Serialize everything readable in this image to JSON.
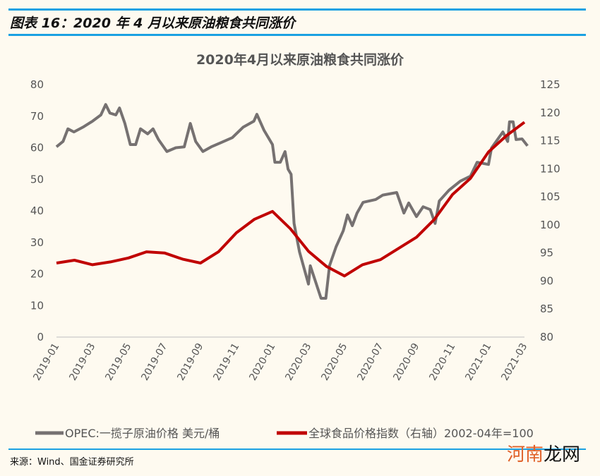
{
  "header": {
    "figure_title": "图表 16：2020 年 4 月以来原油粮食共同涨价"
  },
  "footer": {
    "source": "来源：Wind、国金证券研究所"
  },
  "watermark": {
    "part1": "河南",
    "part2": "龙网"
  },
  "colors": {
    "rule": "#1BA1E2",
    "oil": "#767171",
    "food": "#C00000",
    "background": "#FEFAF0"
  },
  "chart_data": {
    "type": "line",
    "title": "2020年4月以来原油粮食共同涨价",
    "x_ticks": [
      "2019-01",
      "2019-03",
      "2019-05",
      "2019-07",
      "2019-09",
      "2019-11",
      "2020-01",
      "2020-03",
      "2020-05",
      "2020-07",
      "2020-09",
      "2020-11",
      "2021-01",
      "2021-03"
    ],
    "y_left": {
      "range": [
        0,
        80
      ],
      "ticks": [
        "0",
        "10",
        "20",
        "30",
        "40",
        "50",
        "60",
        "70",
        "80"
      ]
    },
    "y_right": {
      "range": [
        80,
        125
      ],
      "ticks": [
        "80",
        "85",
        "90",
        "95",
        "100",
        "105",
        "110",
        "115",
        "120",
        "125"
      ]
    },
    "grid": false,
    "legend_position": "bottom",
    "series": [
      {
        "name": "OPEC:一揽子原油价格 美元/桶",
        "axis": "left",
        "color": "#767171",
        "points": [
          [
            "2019-01-01",
            60.3
          ],
          [
            "2019-01-12",
            62
          ],
          [
            "2019-01-20",
            66
          ],
          [
            "2019-01-30",
            65
          ],
          [
            "2019-02-15",
            66.5
          ],
          [
            "2019-03-01",
            68.4
          ],
          [
            "2019-03-15",
            70.4
          ],
          [
            "2019-03-23",
            73.7
          ],
          [
            "2019-03-30",
            71
          ],
          [
            "2019-04-10",
            70.4
          ],
          [
            "2019-04-16",
            72.6
          ],
          [
            "2019-04-25",
            67.7
          ],
          [
            "2019-05-04",
            61
          ],
          [
            "2019-05-13",
            61
          ],
          [
            "2019-05-21",
            66
          ],
          [
            "2019-06-03",
            64.4
          ],
          [
            "2019-06-12",
            66
          ],
          [
            "2019-06-21",
            62.6
          ],
          [
            "2019-07-05",
            58.8
          ],
          [
            "2019-07-20",
            60
          ],
          [
            "2019-08-04",
            60.3
          ],
          [
            "2019-08-14",
            67.7
          ],
          [
            "2019-08-23",
            62
          ],
          [
            "2019-09-05",
            58.8
          ],
          [
            "2019-09-19",
            60.3
          ],
          [
            "2019-10-06",
            61.7
          ],
          [
            "2019-10-24",
            63.2
          ],
          [
            "2019-11-12",
            66.5
          ],
          [
            "2019-11-30",
            68.4
          ],
          [
            "2019-12-05",
            70.6
          ],
          [
            "2019-12-17",
            65.5
          ],
          [
            "2020-01-01",
            61
          ],
          [
            "2020-01-05",
            55.4
          ],
          [
            "2020-01-14",
            55.4
          ],
          [
            "2020-01-22",
            58.8
          ],
          [
            "2020-01-27",
            53.2
          ],
          [
            "2020-02-02",
            51.6
          ],
          [
            "2020-02-07",
            36
          ],
          [
            "2020-02-16",
            27
          ],
          [
            "2020-03-01",
            16.8
          ],
          [
            "2020-03-04",
            22.6
          ],
          [
            "2020-03-22",
            12.3
          ],
          [
            "2020-03-30",
            12.3
          ],
          [
            "2020-04-06",
            22.6
          ],
          [
            "2020-04-17",
            28.6
          ],
          [
            "2020-04-29",
            33.7
          ],
          [
            "2020-05-06",
            38.7
          ],
          [
            "2020-05-14",
            35.3
          ],
          [
            "2020-05-22",
            39.3
          ],
          [
            "2020-06-02",
            42.7
          ],
          [
            "2020-06-23",
            43.6
          ],
          [
            "2020-07-05",
            45
          ],
          [
            "2020-07-28",
            45.8
          ],
          [
            "2020-08-10",
            39.3
          ],
          [
            "2020-08-18",
            42.5
          ],
          [
            "2020-09-01",
            38.2
          ],
          [
            "2020-09-12",
            41.3
          ],
          [
            "2020-09-24",
            40.4
          ],
          [
            "2020-10-02",
            36
          ],
          [
            "2020-10-09",
            43.1
          ],
          [
            "2020-10-25",
            46.5
          ],
          [
            "2020-11-14",
            49.4
          ],
          [
            "2020-12-01",
            51
          ],
          [
            "2020-12-12",
            55.4
          ],
          [
            "2021-01-01",
            54.7
          ],
          [
            "2021-01-06",
            59.9
          ],
          [
            "2021-01-25",
            65
          ],
          [
            "2021-02-03",
            62
          ],
          [
            "2021-02-06",
            68.2
          ],
          [
            "2021-02-12",
            68.2
          ],
          [
            "2021-02-17",
            62.6
          ],
          [
            "2021-02-27",
            62.8
          ],
          [
            "2021-03-06",
            60.6
          ]
        ]
      },
      {
        "name": "全球食品价格指数（右轴）2002-04年=100",
        "axis": "right",
        "color": "#C00000",
        "points": [
          [
            "2019-01-01",
            93.2
          ],
          [
            "2019-02-01",
            93.7
          ],
          [
            "2019-03-01",
            92.9
          ],
          [
            "2019-04-01",
            93.4
          ],
          [
            "2019-05-01",
            94.1
          ],
          [
            "2019-06-01",
            95.2
          ],
          [
            "2019-07-01",
            95.0
          ],
          [
            "2019-08-01",
            93.9
          ],
          [
            "2019-09-01",
            93.2
          ],
          [
            "2019-10-01",
            95.2
          ],
          [
            "2019-11-01",
            98.6
          ],
          [
            "2019-12-01",
            101.0
          ],
          [
            "2020-01-01",
            102.4
          ],
          [
            "2020-02-01",
            99.3
          ],
          [
            "2020-03-01",
            95.3
          ],
          [
            "2020-04-01",
            92.6
          ],
          [
            "2020-05-01",
            90.9
          ],
          [
            "2020-06-01",
            92.9
          ],
          [
            "2020-07-01",
            93.8
          ],
          [
            "2020-08-01",
            95.8
          ],
          [
            "2020-09-01",
            97.8
          ],
          [
            "2020-10-01",
            101.0
          ],
          [
            "2020-11-01",
            105.4
          ],
          [
            "2020-12-01",
            108.3
          ],
          [
            "2021-01-01",
            113.0
          ],
          [
            "2021-02-01",
            115.9
          ],
          [
            "2021-03-01",
            118.3
          ]
        ]
      }
    ]
  }
}
